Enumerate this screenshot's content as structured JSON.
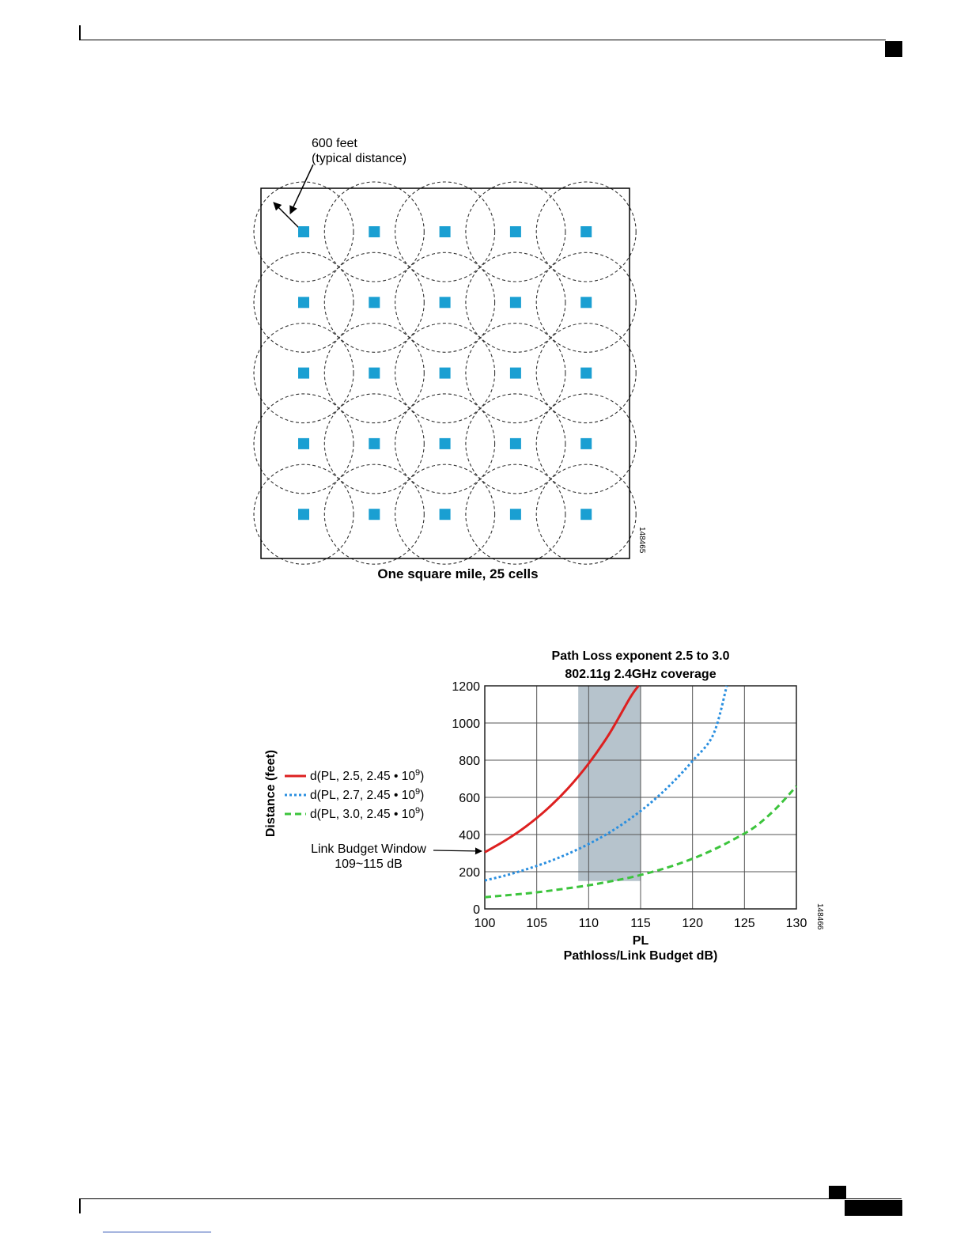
{
  "figure1": {
    "annotation_line1": "600 feet",
    "annotation_line2": "(typical distance)",
    "caption": "One square mile, 25 cells",
    "figure_id": "148465",
    "grid_rows": 5,
    "grid_cols": 5,
    "ap_color": "#1a9fd2"
  },
  "figure2": {
    "figure_id": "148466",
    "annotation_line1": "Link Budget Window",
    "annotation_line2": "109~115 dB",
    "legend_text": [
      "d(PL, 2.5, 2.45 • 10",
      "d(PL, 2.7, 2.45 • 10",
      "d(PL, 3.0, 2.45 • 10"
    ],
    "legend_sup": "9",
    "legend_close": ")"
  },
  "chart_data": {
    "type": "line",
    "title": "Path Loss exponent 2.5 to 3.0",
    "subtitle": "802.11g 2.4GHz coverage",
    "xlabel": "PL",
    "xlabel2": "Pathloss/Link Budget dB)",
    "ylabel": "Distance (feet)",
    "xlim": [
      100,
      130
    ],
    "ylim": [
      0,
      1200
    ],
    "xticks": [
      100,
      105,
      110,
      115,
      120,
      125,
      130
    ],
    "yticks": [
      0,
      200,
      400,
      600,
      800,
      1000,
      1200
    ],
    "grid": true,
    "legend_position": "left",
    "shaded_region": {
      "x": [
        109,
        115
      ],
      "y": [
        150,
        1200
      ]
    },
    "series": [
      {
        "color": "#dd2020",
        "style": "solid",
        "x": [
          100,
          102,
          104,
          106,
          108,
          110,
          112,
          114,
          114.8
        ],
        "y": [
          305,
          369,
          445,
          537,
          648,
          782,
          943,
          1137,
          1200
        ]
      },
      {
        "color": "#2a8fe0",
        "style": "dotted",
        "x": [
          100,
          102,
          104,
          106,
          108,
          110,
          112,
          114,
          116,
          118,
          120,
          122,
          123.3
        ],
        "y": [
          153,
          180,
          213,
          251,
          296,
          349,
          411,
          485,
          572,
          675,
          796,
          938,
          1200
        ]
      },
      {
        "color": "#3cc43c",
        "style": "dashed",
        "x": [
          100,
          102,
          104,
          106,
          108,
          110,
          112,
          114,
          116,
          118,
          120,
          122,
          124,
          126,
          128,
          130
        ],
        "y": [
          63,
          73,
          83,
          96,
          111,
          127,
          147,
          169,
          197,
          230,
          270,
          318,
          375,
          441,
          538,
          660
        ]
      }
    ]
  }
}
